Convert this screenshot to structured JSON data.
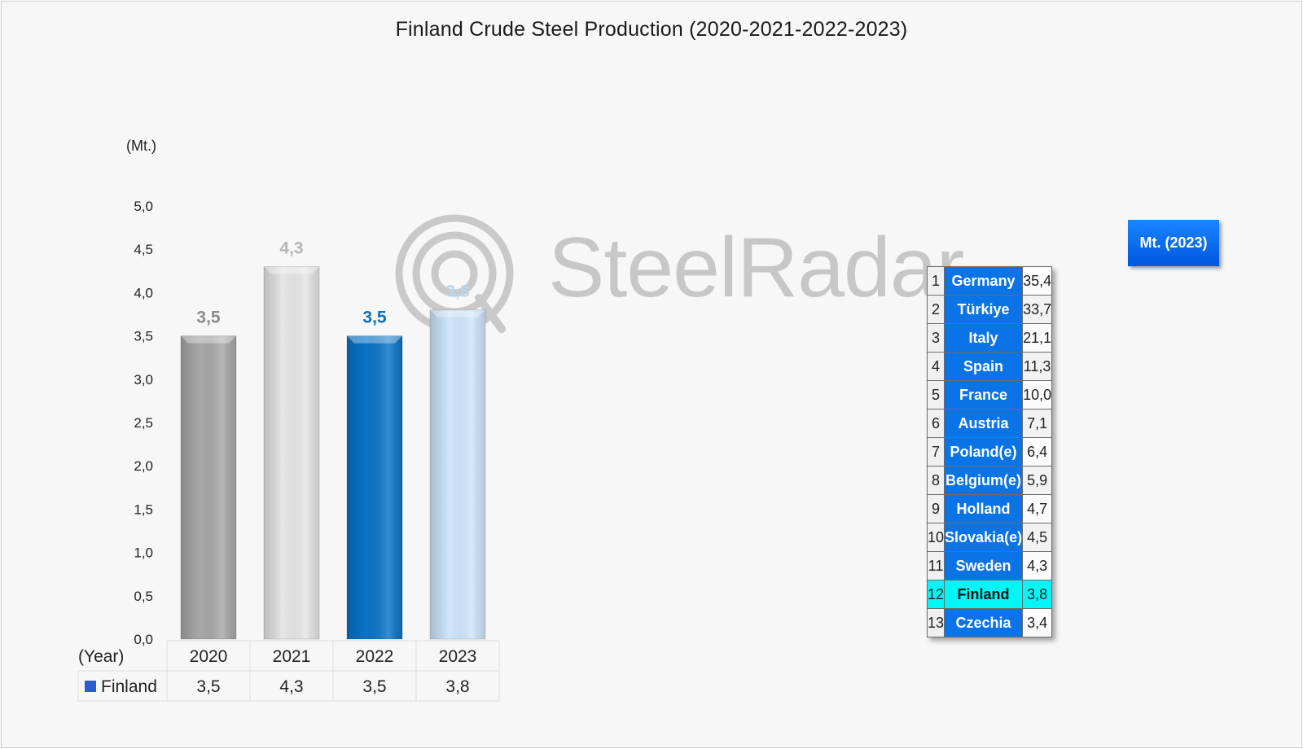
{
  "chart_data": {
    "type": "bar",
    "title": "Finland Crude Steel Production (2020-2021-2022-2023)",
    "unit_label": "(Mt.)",
    "x_axis_label": "(Year)",
    "categories": [
      "2020",
      "2021",
      "2022",
      "2023"
    ],
    "series": [
      {
        "name": "Finland",
        "values": [
          3.5,
          4.3,
          3.5,
          3.8
        ],
        "value_labels": [
          "3,5",
          "4,3",
          "3,5",
          "3,8"
        ],
        "bar_colors": [
          "#a8a8a8",
          "#e6e6e6",
          "#0a74c8",
          "#cfe6fb"
        ],
        "label_colors": [
          "#8c8c8c",
          "#b5b5b5",
          "#0d6fb8",
          "#b5d6f3"
        ]
      }
    ],
    "ylim": [
      0,
      5
    ],
    "y_ticks": [
      "0,0",
      "0,5",
      "1,0",
      "1,5",
      "2,0",
      "2,5",
      "3,0",
      "3,5",
      "4,0",
      "4,5",
      "5,0"
    ],
    "legend_marker_color": "#2d5bd1",
    "grid": false
  },
  "watermark": {
    "text": "SteelRadar"
  },
  "ranking_table": {
    "header": "Mt. (2023)",
    "rows": [
      {
        "rank": "1",
        "country": "Germany",
        "value": "35,4"
      },
      {
        "rank": "2",
        "country": "Türkiye",
        "value": "33,7"
      },
      {
        "rank": "3",
        "country": "Italy",
        "value": "21,1"
      },
      {
        "rank": "4",
        "country": "Spain",
        "value": "11,3"
      },
      {
        "rank": "5",
        "country": "France",
        "value": "10,0"
      },
      {
        "rank": "6",
        "country": "Austria",
        "value": "7,1"
      },
      {
        "rank": "7",
        "country": "Poland(e)",
        "value": "6,4"
      },
      {
        "rank": "8",
        "country": "Belgium(e)",
        "value": "5,9"
      },
      {
        "rank": "9",
        "country": "Holland",
        "value": "4,7"
      },
      {
        "rank": "10",
        "country": "Slovakia(e)",
        "value": "4,5"
      },
      {
        "rank": "11",
        "country": "Sweden",
        "value": "4,3"
      },
      {
        "rank": "12",
        "country": "Finland",
        "value": "3,8",
        "highlight": true
      },
      {
        "rank": "13",
        "country": "Czechia",
        "value": "3,4"
      }
    ],
    "country_color": "#0a73e6",
    "highlight_color": "#00f7f5"
  }
}
